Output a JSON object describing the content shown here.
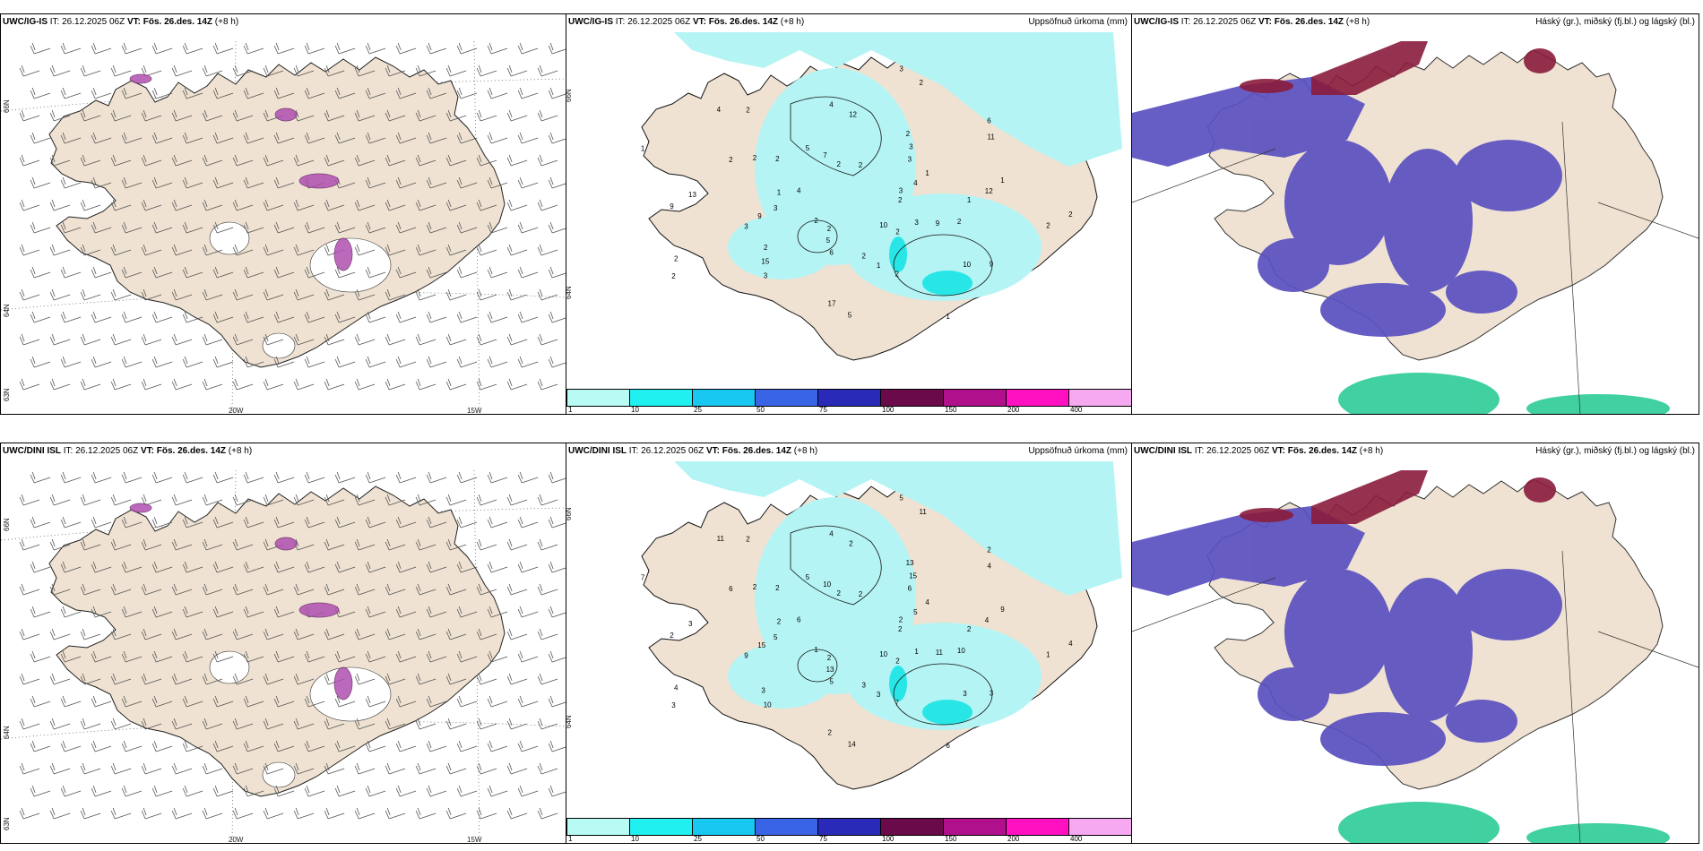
{
  "rows": [
    {
      "panels": [
        {
          "model": "UWC/IG-IS",
          "it_label": "IT:",
          "it_value": "26.12.2025 06Z",
          "vt_label": "VT:",
          "vt_value": "Fös. 26.des. 14Z",
          "lead": "(+8 h)",
          "right_title": ""
        },
        {
          "model": "UWC/IG-IS",
          "it_label": "IT:",
          "it_value": "26.12.2025 06Z",
          "vt_label": "VT:",
          "vt_value": "Fös. 26.des. 14Z",
          "lead": "(+8 h)",
          "right_title": "Uppsöfnuð úrkoma (mm)"
        },
        {
          "model": "UWC/IG-IS",
          "it_label": "IT:",
          "it_value": "26.12.2025 06Z",
          "vt_label": "VT:",
          "vt_value": "Fös. 26.des. 14Z",
          "lead": "(+8 h)",
          "right_title": "Háský (gr.), miðský (fj.bl.) og lágský (bl.)"
        }
      ]
    },
    {
      "panels": [
        {
          "model": "UWC/DINI ISL",
          "it_label": "IT:",
          "it_value": "26.12.2025 06Z",
          "vt_label": "VT:",
          "vt_value": "Fös. 26.des. 14Z",
          "lead": "(+8 h)",
          "right_title": ""
        },
        {
          "model": "UWC/DINI ISL",
          "it_label": "IT:",
          "it_value": "26.12.2025 06Z",
          "vt_label": "VT:",
          "vt_value": "Fös. 26.des. 14Z",
          "lead": "(+8 h)",
          "right_title": "Uppsöfnuð úrkoma (mm)"
        },
        {
          "model": "UWC/DINI ISL",
          "it_label": "IT:",
          "it_value": "26.12.2025 06Z",
          "vt_label": "VT:",
          "vt_value": "Fös. 26.des. 14Z",
          "lead": "(+8 h)",
          "right_title": "Háský (gr.), miðský (fj.bl.) og lágský (bl.)"
        }
      ]
    }
  ],
  "axis_labels": {
    "lon_20w": "20W",
    "lon_15w": "15W",
    "lat_66n": "66N",
    "lat_64n": "64N",
    "lat_63n": "63N"
  },
  "colorbar": {
    "ticks": [
      "1",
      "10",
      "25",
      "50",
      "75",
      "100",
      "150",
      "200",
      "400"
    ],
    "colors": [
      "#b8fbf5",
      "#20f0f0",
      "#18c8f0",
      "#3a64e6",
      "#2a2ab8",
      "#6a0a4a",
      "#b0108c",
      "#ff10c0",
      "#f6a8f0"
    ]
  },
  "colors": {
    "land": "#efe2d2",
    "sea": "#ffffff",
    "precip_light": "#b5f4f4",
    "precip_mid": "#29e6e6",
    "high_cloud": "#8a1c3c",
    "mid_cloud": "#5a50c0",
    "low_cloud": "#20c890"
  },
  "precip_labels_top": [
    "2",
    "2",
    "2",
    "2",
    "1",
    "1",
    "6",
    "5",
    "2",
    "3",
    "2",
    "2",
    "2",
    "1",
    "3",
    "4",
    "9",
    "9",
    "6",
    "5",
    "4",
    "2",
    "2",
    "3",
    "10",
    "4",
    "4",
    "5",
    "7",
    "9",
    "9",
    "3",
    "1",
    "2",
    "12",
    "15",
    "12",
    "10",
    "13",
    "11",
    "17",
    "2",
    "2",
    "2",
    "2",
    "1",
    "1",
    "3",
    "2",
    "2",
    "3",
    "3",
    "3",
    "2",
    "2",
    "1",
    "2"
  ],
  "precip_labels_bottom": [
    "2",
    "1",
    "2",
    "2",
    "2",
    "4",
    "5",
    "5",
    "10",
    "9",
    "13",
    "7",
    "6",
    "9",
    "10",
    "4",
    "3",
    "2",
    "2",
    "14",
    "11",
    "4",
    "3",
    "5",
    "10",
    "6",
    "5",
    "13",
    "10",
    "11",
    "15",
    "15",
    "3",
    "2",
    "4",
    "3",
    "2",
    "3",
    "3",
    "4",
    "2",
    "2",
    "1",
    "4",
    "11",
    "6",
    "7",
    "2",
    "2",
    "2",
    "1",
    "5",
    "6",
    "3",
    "2",
    "2"
  ]
}
